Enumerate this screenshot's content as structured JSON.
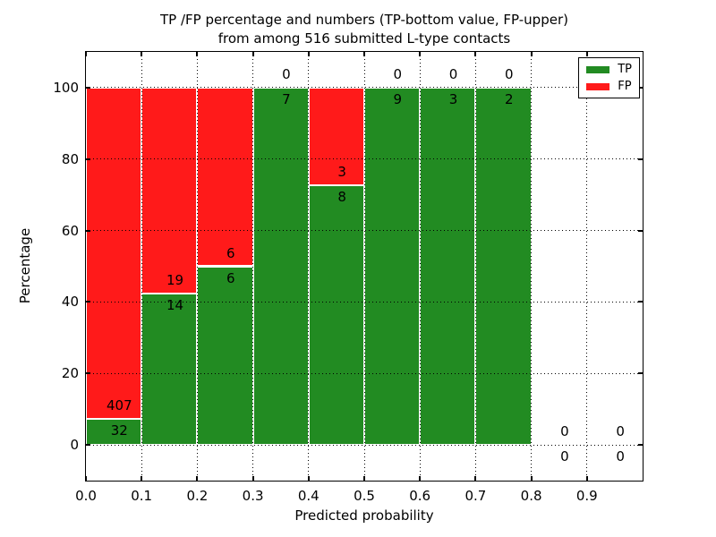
{
  "title_line1": "TP /FP percentage and numbers (TP-bottom value, FP-upper)",
  "title_line2": "from among 516 submitted L-type contacts",
  "chart_data": {
    "type": "bar",
    "stacked": true,
    "normalized": "each bin scaled to 100%",
    "title": "TP /FP percentage and numbers (TP-bottom value, FP-upper) from among 516 submitted L-type contacts",
    "title_lines": [
      "TP /FP percentage and numbers (TP-bottom value, FP-upper)",
      "from among 516 submitted L-type contacts"
    ],
    "xlabel": "Predicted probability",
    "ylabel": "Percentage",
    "total_contacts": 516,
    "bin_edges": [
      0.0,
      0.1,
      0.2,
      0.3,
      0.4,
      0.5,
      0.6,
      0.7,
      0.8,
      0.9,
      1.0
    ],
    "series": [
      {
        "name": "TP",
        "color": "#228B22",
        "counts": [
          32,
          14,
          6,
          7,
          8,
          9,
          3,
          2,
          0,
          0
        ]
      },
      {
        "name": "FP",
        "color": "#FF1A1A",
        "counts": [
          407,
          19,
          6,
          0,
          3,
          0,
          0,
          0,
          0,
          0
        ]
      }
    ],
    "tp_percent_per_bin": [
      7.3,
      42.4,
      50.0,
      100.0,
      72.7,
      100.0,
      100.0,
      100.0,
      null,
      null
    ],
    "xticks": [
      "0.0",
      "0.1",
      "0.2",
      "0.3",
      "0.4",
      "0.5",
      "0.6",
      "0.7",
      "0.8",
      "0.9"
    ],
    "yticks": [
      "0",
      "20",
      "40",
      "60",
      "80",
      "100"
    ],
    "xlim": [
      0.0,
      1.0
    ],
    "ylim": [
      -10,
      110
    ],
    "grid": {
      "style": "dotted",
      "color": "#000000"
    },
    "bar_edge_color": "#ffffff",
    "legend": {
      "position": "upper right",
      "entries": [
        {
          "label": "TP",
          "color": "#228B22"
        },
        {
          "label": "FP",
          "color": "#FF1A1A"
        }
      ]
    }
  }
}
